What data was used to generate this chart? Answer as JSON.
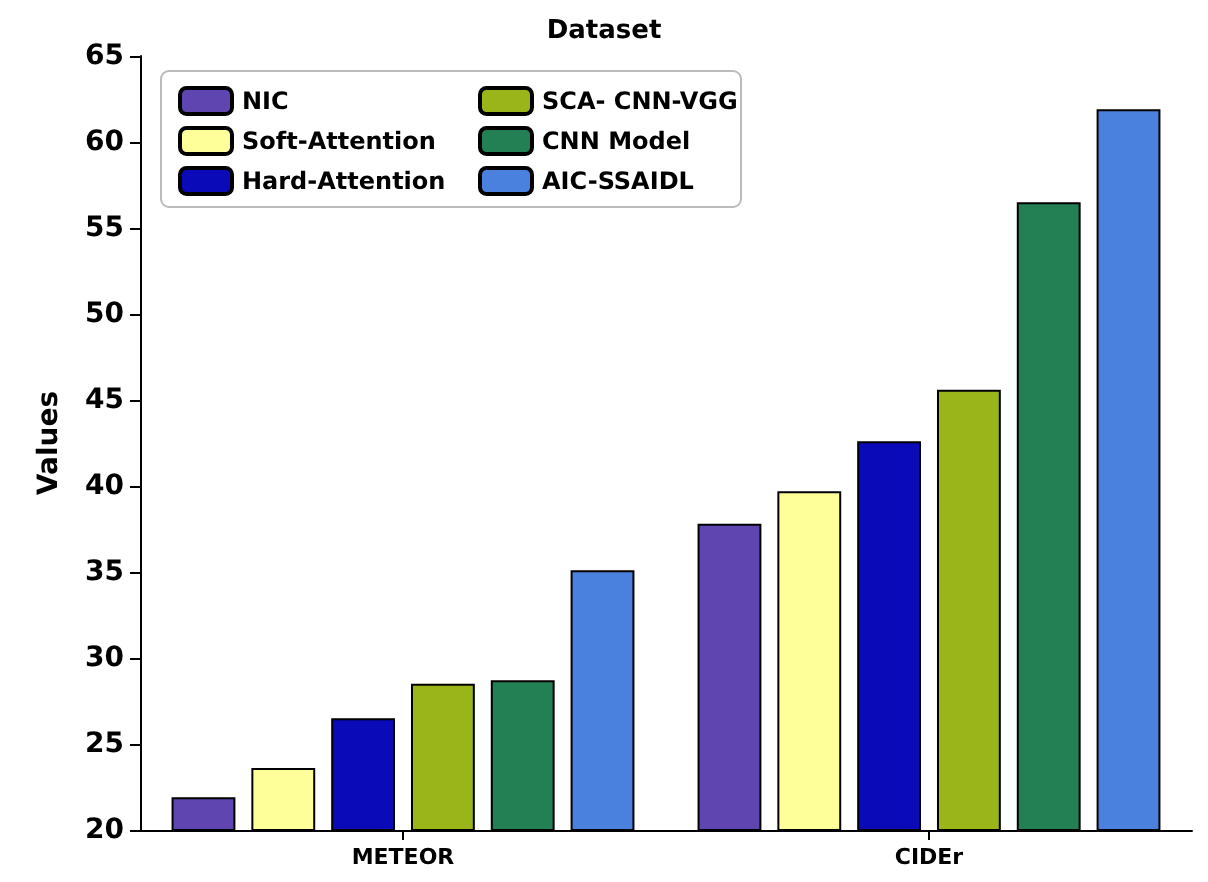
{
  "chart_data": {
    "type": "bar",
    "title": "Dataset",
    "ylabel": "Values",
    "categories": [
      "METEOR",
      "CIDEr"
    ],
    "series": [
      {
        "name": "NIC",
        "color": "#5e45b0",
        "values": [
          21.9,
          37.8
        ]
      },
      {
        "name": "Soft-Attention",
        "color": "#ffff99",
        "values": [
          23.6,
          39.7
        ]
      },
      {
        "name": "Hard-Attention",
        "color": "#0a0ab8",
        "values": [
          26.5,
          42.6
        ]
      },
      {
        "name": "SCA- CNN-VGG",
        "color": "#9ab519",
        "values": [
          28.5,
          45.6
        ]
      },
      {
        "name": "CNN Model",
        "color": "#238055",
        "values": [
          28.7,
          56.5
        ]
      },
      {
        "name": "AIC-SSAIDL",
        "color": "#4a80de",
        "values": [
          35.1,
          61.9
        ]
      }
    ],
    "ylim": [
      20,
      65
    ],
    "yticks": [
      20,
      25,
      30,
      35,
      40,
      45,
      50,
      55,
      60,
      65
    ],
    "grid": false,
    "legend": "top left"
  }
}
